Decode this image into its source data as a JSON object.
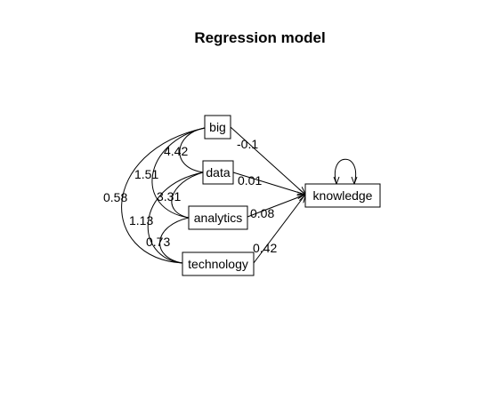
{
  "title": "Regression model",
  "nodes": {
    "big": "big",
    "data": "data",
    "analytics": "analytics",
    "technology": "technology",
    "knowledge": "knowledge"
  },
  "paths": {
    "big_knowledge": "-0.1",
    "data_knowledge": "0.01",
    "analytics_knowledge": "0.08",
    "technology_knowledge": "0.42"
  },
  "covariances": {
    "big_data": "4.42",
    "big_analytics": "1.51",
    "big_technology": "0.58",
    "data_analytics": "3.31",
    "data_technology": "1.13",
    "analytics_technology": "0.73"
  }
}
